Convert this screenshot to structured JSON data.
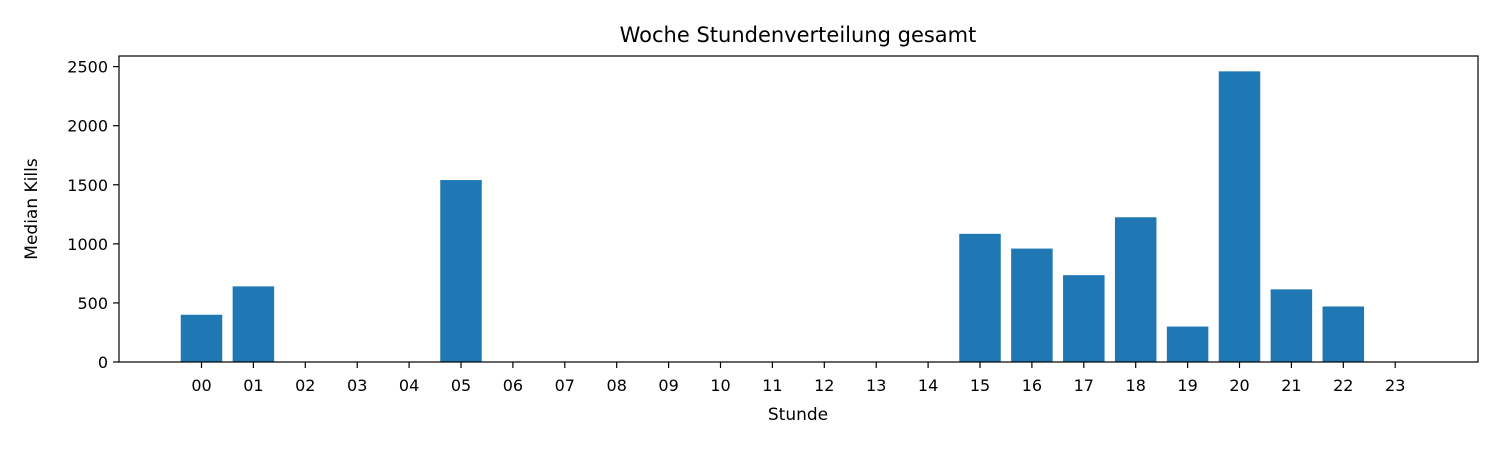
{
  "chart_data": {
    "type": "bar",
    "title": "Woche Stundenverteilung gesamt",
    "xlabel": "Stunde",
    "ylabel": "Median Kills",
    "categories": [
      "00",
      "01",
      "02",
      "03",
      "04",
      "05",
      "06",
      "07",
      "08",
      "09",
      "10",
      "11",
      "12",
      "13",
      "14",
      "15",
      "16",
      "17",
      "18",
      "19",
      "20",
      "21",
      "22",
      "23"
    ],
    "values": [
      400,
      640,
      0,
      0,
      0,
      1540,
      0,
      0,
      0,
      0,
      0,
      0,
      0,
      0,
      0,
      1085,
      960,
      735,
      1225,
      300,
      2460,
      615,
      470,
      0
    ],
    "ylim": [
      0,
      2590
    ],
    "yticks": [
      0,
      500,
      1000,
      1500,
      2000,
      2500
    ],
    "grid": false,
    "bar_color": "#1f77b4"
  }
}
